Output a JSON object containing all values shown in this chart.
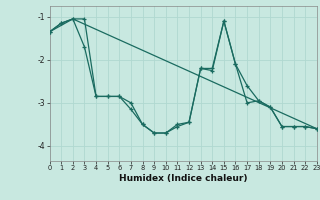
{
  "xlabel": "Humidex (Indice chaleur)",
  "xlim": [
    0,
    23
  ],
  "ylim": [
    -4.35,
    -0.75
  ],
  "yticks": [
    -4,
    -3,
    -2,
    -1
  ],
  "xticks": [
    0,
    1,
    2,
    3,
    4,
    5,
    6,
    7,
    8,
    9,
    10,
    11,
    12,
    13,
    14,
    15,
    16,
    17,
    18,
    19,
    20,
    21,
    22,
    23
  ],
  "bg_color": "#c8e8e0",
  "line_color": "#1a6b60",
  "grid_color": "#b0d8d0",
  "series1_x": [
    0,
    1,
    2,
    3,
    4,
    5,
    6,
    7,
    8,
    9,
    10,
    11,
    12,
    13,
    14,
    15,
    16,
    17,
    18,
    19,
    20,
    21,
    22,
    23
  ],
  "series1_y": [
    -1.35,
    -1.15,
    -1.05,
    -1.7,
    -2.85,
    -2.85,
    -2.85,
    -3.15,
    -3.5,
    -3.7,
    -3.7,
    -3.5,
    -3.45,
    -2.2,
    -2.2,
    -1.1,
    -2.1,
    -2.6,
    -2.95,
    -3.1,
    -3.55,
    -3.55,
    -3.55,
    -3.6
  ],
  "series2_x": [
    0,
    1,
    2,
    3,
    4,
    5,
    6,
    7,
    8,
    9,
    10,
    11,
    12,
    13,
    14,
    15,
    16,
    17,
    18,
    19,
    20,
    21,
    22,
    23
  ],
  "series2_y": [
    -1.35,
    -1.15,
    -1.05,
    -1.05,
    -2.85,
    -2.85,
    -2.85,
    -3.0,
    -3.5,
    -3.7,
    -3.7,
    -3.55,
    -3.45,
    -2.2,
    -2.25,
    -1.1,
    -2.1,
    -3.0,
    -2.95,
    -3.1,
    -3.55,
    -3.55,
    -3.55,
    -3.6
  ],
  "series3_x": [
    0,
    2,
    23
  ],
  "series3_y": [
    -1.35,
    -1.05,
    -3.6
  ]
}
